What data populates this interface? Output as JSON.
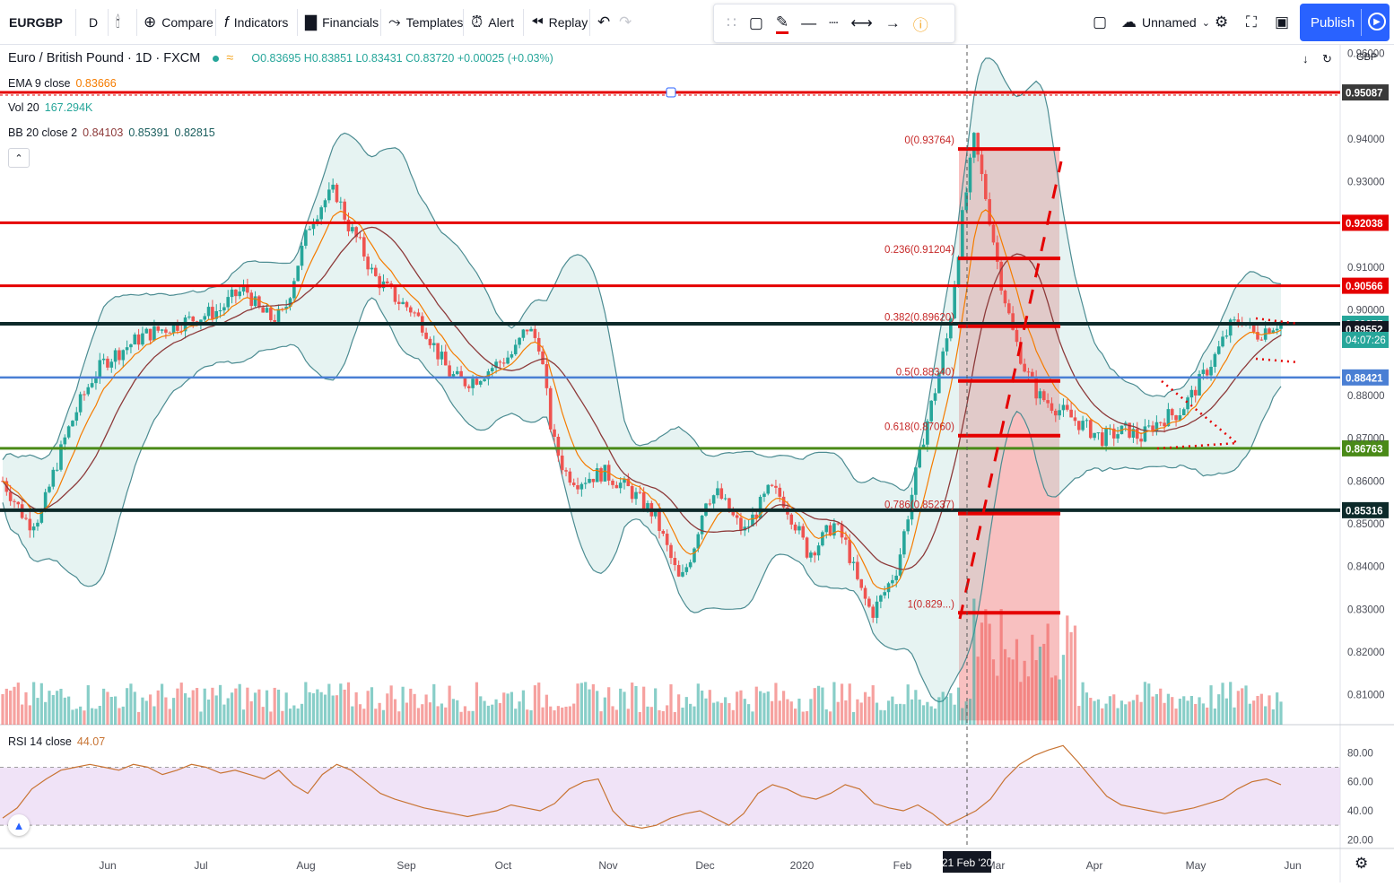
{
  "toolbar": {
    "symbol": "EURGBP",
    "interval": "D",
    "compare": "Compare",
    "indicators": "Indicators",
    "financials": "Financials",
    "templates": "Templates",
    "alert": "Alert",
    "replay": "Replay",
    "layout_name": "Unnamed",
    "publish": "Publish"
  },
  "legend": {
    "title": "Euro / British Pound · 1D · FXCM",
    "ohlc": "O0.83695 H0.83851 L0.83431 C0.83720 +0.00025 (+0.03%)",
    "ema_label": "EMA 9 close",
    "ema_value": "0.83666",
    "vol_label": "Vol 20",
    "vol_value": "167.294K",
    "bb_label": "BB 20 close 2",
    "bb_v1": "0.84103",
    "bb_v2": "0.85391",
    "bb_v3": "0.82815",
    "rsi_label": "RSI 14 close",
    "rsi_value": "44.07"
  },
  "axis": {
    "currency": "GBP",
    "countdown": "04:07:26",
    "crosshair_date": "21 Feb '20"
  },
  "colors": {
    "up": "#26a69a",
    "down": "#ef5350",
    "ema": "#f57c00",
    "sma": "#8d3a3a",
    "bb_band": "#4c8c92",
    "red_level": "#e50000",
    "navy_level": "#0d2a2a",
    "blue_level": "#4a7fd4",
    "green_level": "#4a8a18",
    "fib_zone": "#f28c8c",
    "rsi_band": "#ecdcf5",
    "rsi_line": "#c87433",
    "brand": "#2962ff"
  },
  "chart_data": {
    "type": "candlestick",
    "title": "Euro / British Pound",
    "timeframe": "1D",
    "source": "FXCM",
    "xlabels": [
      "Jun",
      "Jul",
      "Aug",
      "Sep",
      "Oct",
      "Nov",
      "Dec",
      "2020",
      "Feb",
      "Mar",
      "Apr",
      "May",
      "Jun"
    ],
    "price_ticks": [
      "0.96000",
      "0.94000",
      "0.93000",
      "0.91000",
      "0.90000",
      "0.88000",
      "0.87000",
      "0.86000",
      "0.85000",
      "0.84000",
      "0.83000",
      "0.82000",
      "0.81000"
    ],
    "ylim": [
      0.803,
      0.962
    ],
    "series": [
      {
        "name": "EURGBP close (approx)",
        "points": [
          [
            0.86,
            0.855,
            0.85,
            0.852,
            0.862,
            0.871,
            0.878,
            0.884,
            0.888,
            0.89,
            0.892,
            0.894,
            0.895,
            0.896,
            0.897,
            0.898,
            0.899,
            0.9,
            0.903,
            0.905,
            0.9,
            0.898,
            0.899,
            0.91,
            0.92,
            0.925,
            0.928,
            0.92,
            0.915,
            0.908,
            0.905,
            0.902,
            0.9,
            0.896,
            0.89,
            0.885,
            0.883,
            0.884,
            0.886,
            0.888,
            0.89,
            0.896
          ],
          [
            0.892,
            0.87,
            0.862,
            0.86,
            0.861,
            0.862,
            0.86,
            0.858,
            0.855,
            0.852,
            0.844,
            0.836,
            0.844,
            0.856,
            0.857,
            0.852,
            0.848,
            0.853,
            0.858,
            0.856,
            0.85,
            0.843,
            0.846,
            0.85,
            0.845,
            0.835,
            0.829,
            0.834,
            0.84,
            0.855,
            0.87,
            0.882,
            0.895,
            0.92,
            0.94,
            0.925,
            0.908,
            0.895,
            0.886,
            0.88,
            0.878,
            0.876
          ],
          [
            0.874,
            0.872,
            0.87,
            0.871,
            0.872,
            0.87,
            0.873,
            0.875,
            0.876,
            0.88,
            0.885,
            0.89,
            0.896,
            0.898,
            0.894,
            0.896,
            0.8972
          ]
        ]
      }
    ],
    "levels": [
      {
        "name": "resistance",
        "value": "0.95087"
      },
      {
        "name": "resistance",
        "value": "0.92038"
      },
      {
        "name": "resistance",
        "value": "0.90566"
      },
      {
        "name": "current",
        "value": "0.89677"
      },
      {
        "name": "last",
        "value": "0.89552"
      },
      {
        "name": "support",
        "value": "0.88421"
      },
      {
        "name": "support",
        "value": "0.86763"
      },
      {
        "name": "support",
        "value": "0.85316"
      }
    ],
    "fibonacci": [
      {
        "label": "0(0.93764)",
        "value": 0.93764
      },
      {
        "label": "0.236(0.91204)",
        "value": 0.91204
      },
      {
        "label": "0.382(0.89620)",
        "value": 0.8962
      },
      {
        "label": "0.5(0.88340)",
        "value": 0.8834
      },
      {
        "label": "0.618(0.87060)",
        "value": 0.8706
      },
      {
        "label": "0.786(0.85237)",
        "value": 0.85237
      },
      {
        "label": "1(0.829...)",
        "value": 0.82916
      }
    ],
    "rsi": {
      "ticks": [
        "80.00",
        "60.00",
        "40.00",
        "20.00"
      ],
      "upper": 70,
      "lower": 30,
      "values": [
        35,
        42,
        55,
        62,
        68,
        70,
        72,
        70,
        68,
        72,
        70,
        65,
        68,
        72,
        70,
        66,
        68,
        65,
        62,
        68,
        58,
        52,
        65,
        72,
        68,
        60,
        52,
        48,
        45,
        42,
        40,
        38,
        36,
        38,
        40,
        44,
        42,
        40,
        45,
        55,
        60,
        62,
        40,
        30,
        28,
        30,
        35,
        38,
        40,
        35,
        30,
        38,
        52,
        58,
        55,
        50,
        48,
        52,
        58,
        55,
        45,
        42,
        40,
        44,
        38,
        30,
        35,
        40,
        48,
        62,
        72,
        78,
        82,
        85,
        74,
        62,
        50,
        44,
        42,
        40,
        38,
        40,
        42,
        45,
        48,
        55,
        60,
        62,
        58
      ]
    }
  }
}
